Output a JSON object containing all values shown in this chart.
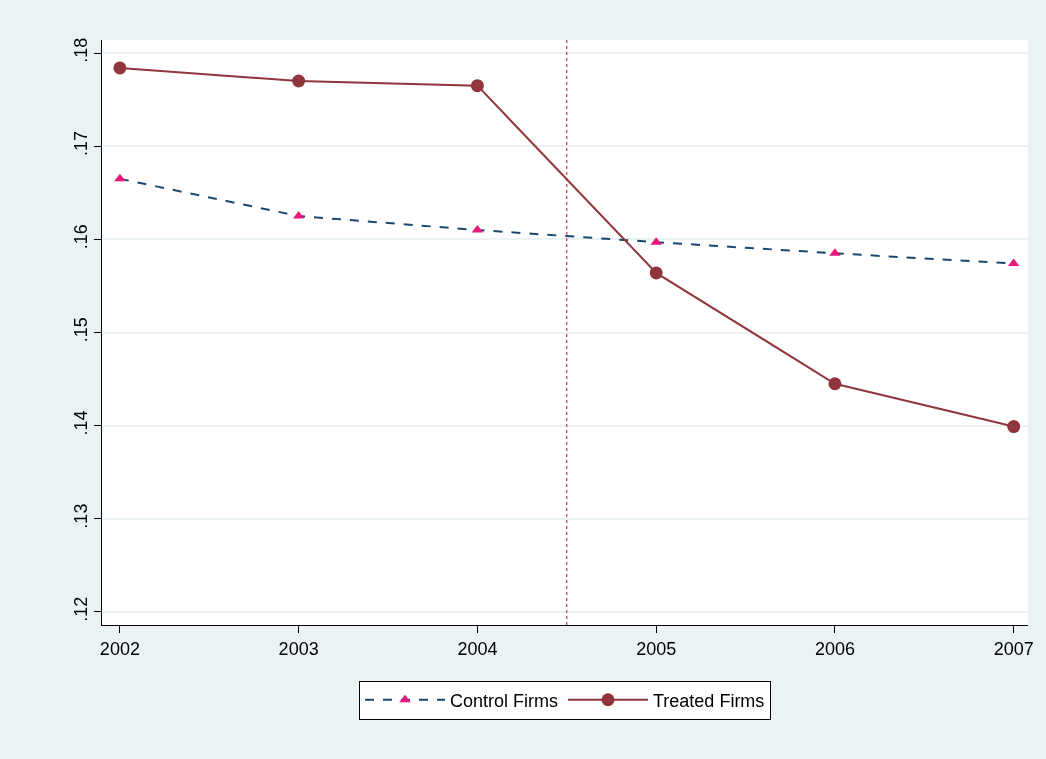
{
  "chart_data": {
    "type": "line",
    "x": [
      2002,
      2003,
      2004,
      2005,
      2006,
      2007
    ],
    "series": [
      {
        "name": "Control Firms",
        "color": "#1a476f",
        "colors": [
          "#e8177b",
          "#e8177b",
          "#e8177b",
          "#e8177b",
          "#e8177b",
          "#e8177b"
        ],
        "marker": "triangle",
        "line_style": "dashed",
        "values": [
          0.1665,
          0.1625,
          0.161,
          0.1597,
          0.1585,
          0.1574
        ]
      },
      {
        "name": "Treated Firms",
        "color": "#90353b",
        "marker": "circle",
        "line_style": "solid",
        "values": [
          0.1784,
          0.177,
          0.1765,
          0.1564,
          0.1445,
          0.1399
        ]
      }
    ],
    "xlim": [
      2001.9,
      2007.08
    ],
    "xticks": [
      2002,
      2003,
      2004,
      2005,
      2006,
      2007
    ],
    "ylim": [
      0.1186,
      0.1814
    ],
    "yticks": [
      {
        "value": 0.12,
        "label": ".12"
      },
      {
        "value": 0.13,
        "label": ".13"
      },
      {
        "value": 0.14,
        "label": ".14"
      },
      {
        "value": 0.15,
        "label": ".15"
      },
      {
        "value": 0.16,
        "label": ".16"
      },
      {
        "value": 0.17,
        "label": ".17"
      },
      {
        "value": 0.18,
        "label": ".18"
      }
    ],
    "ref_lines": [
      {
        "axis": "x",
        "value": 2004.5,
        "color": "#c8103c",
        "line_style": "dotted"
      }
    ],
    "grid": "y",
    "legend": "bottom"
  }
}
